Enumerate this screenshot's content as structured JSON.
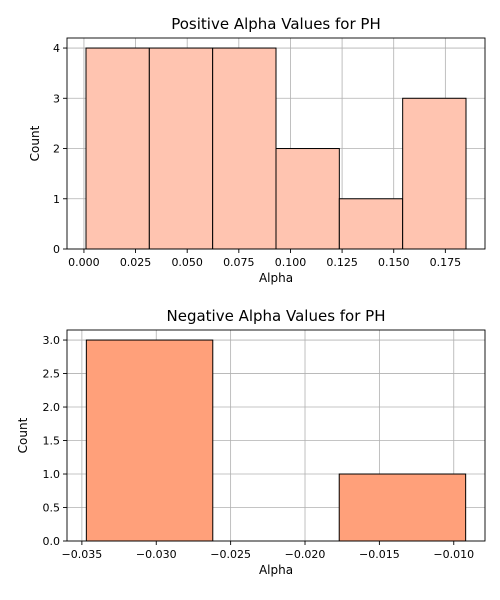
{
  "chart_data": [
    {
      "type": "bar",
      "title": "Positive Alpha Values for PH",
      "xlabel": "Alpha",
      "ylabel": "Count",
      "bin_edges": [
        0.001,
        0.031667,
        0.062333,
        0.093,
        0.123667,
        0.154333,
        0.185
      ],
      "values": [
        4,
        4,
        4,
        2,
        1,
        3
      ],
      "xlim": [
        -0.0082,
        0.1942
      ],
      "ylim": [
        0,
        4.2
      ],
      "xticks": [
        0.0,
        0.025,
        0.05,
        0.075,
        0.1,
        0.125,
        0.15,
        0.175
      ],
      "xtick_labels": [
        "0.000",
        "0.025",
        "0.050",
        "0.075",
        "0.100",
        "0.125",
        "0.150",
        "0.175"
      ],
      "yticks": [
        0,
        1,
        2,
        3,
        4
      ],
      "ytick_labels": [
        "0",
        "1",
        "2",
        "3",
        "4"
      ],
      "grid": true,
      "color": "#ffc4b0"
    },
    {
      "type": "bar",
      "title": "Negative Alpha Values for PH",
      "xlabel": "Alpha",
      "ylabel": "Count",
      "bin_edges": [
        -0.0347,
        -0.0262,
        -0.0177,
        -0.0092
      ],
      "values": [
        3,
        0,
        1
      ],
      "xlim": [
        -0.036,
        -0.0079
      ],
      "ylim": [
        0,
        3.15
      ],
      "xticks": [
        -0.035,
        -0.03,
        -0.025,
        -0.02,
        -0.015,
        -0.01
      ],
      "xtick_labels": [
        "−0.035",
        "−0.030",
        "−0.025",
        "−0.020",
        "−0.015",
        "−0.010"
      ],
      "yticks": [
        0,
        0.5,
        1,
        1.5,
        2,
        2.5,
        3
      ],
      "ytick_labels": [
        "0.0",
        "0.5",
        "1.0",
        "1.5",
        "2.0",
        "2.5",
        "3.0"
      ],
      "grid": true,
      "color": "#ffa07a"
    }
  ]
}
